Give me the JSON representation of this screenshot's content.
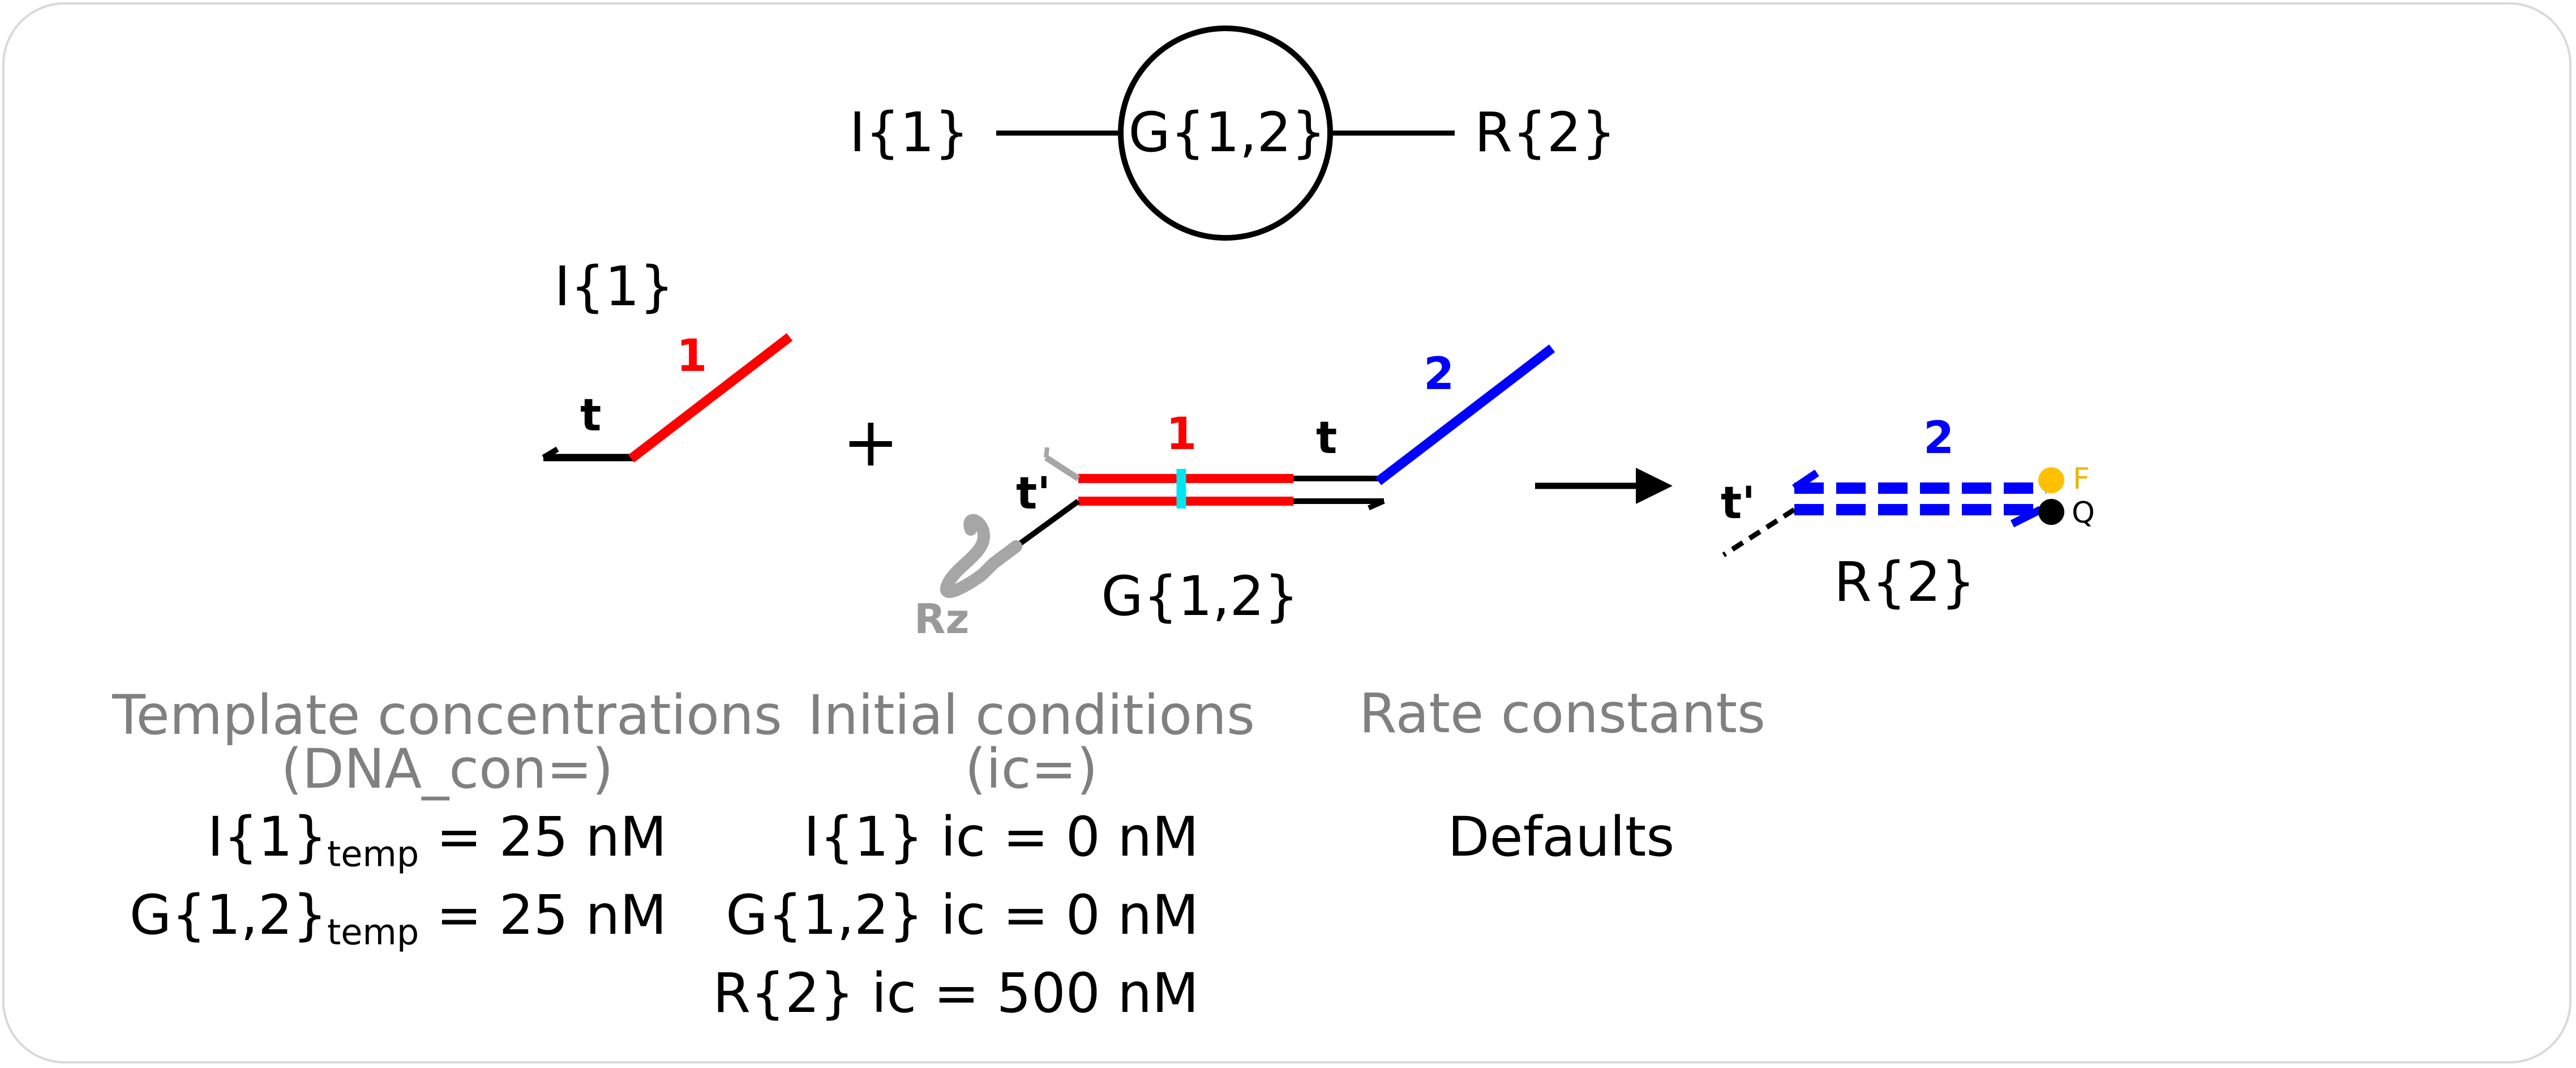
{
  "network": {
    "input_node": "I{1}",
    "gate_node": "G{1,2}",
    "reporter_node": "R{2}"
  },
  "schematic": {
    "input_title": "I{1}",
    "input_toehold": "t",
    "input_domain": "1",
    "plus": "+",
    "gate_prime": "t'",
    "gate_domain1": "1",
    "gate_toehold": "t",
    "gate_domain2": "2",
    "ribozyme": "Rz",
    "gate_title": "G{1,2}",
    "reporter_prime": "t'",
    "reporter_domain": "2",
    "fluorophore": "F",
    "quencher": "Q",
    "reporter_title": "R{2}"
  },
  "colors": {
    "domain1": "#ff0000",
    "domain2": "#0000ff",
    "cleavage_site": "#00e5ee",
    "ribozyme": "#a6a6a6",
    "fluorophore": "#ffc000",
    "quencher": "#000000",
    "header_text": "#808080"
  },
  "params": {
    "template_header_1": "Template concentrations",
    "template_header_2": "(DNA_con=)",
    "template_rows": [
      {
        "name": "I{1}",
        "sub": "temp",
        "value": " = 25 nM"
      },
      {
        "name": "G{1,2}",
        "sub": "temp",
        "value": " = 25 nM"
      }
    ],
    "initial_header_1": "Initial conditions",
    "initial_header_2": "(ic=)",
    "initial_rows": [
      "I{1} ic = 0 nM",
      "G{1,2} ic = 0 nM",
      "R{2} ic = 500 nM"
    ],
    "rate_header": "Rate constants",
    "rate_value": "Defaults"
  }
}
